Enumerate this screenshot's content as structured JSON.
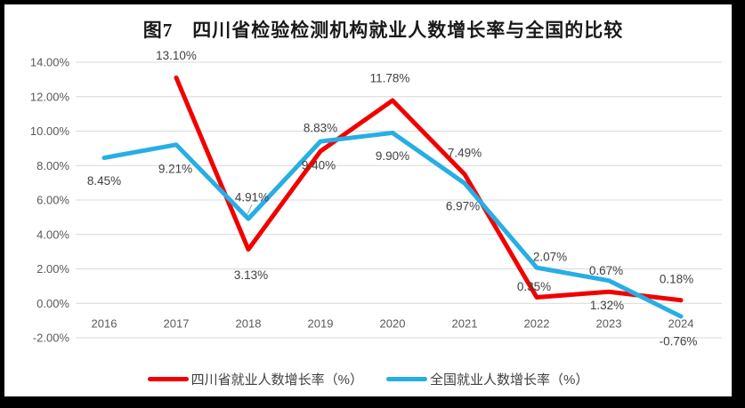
{
  "chart_data": {
    "type": "line",
    "title": "图7　四川省检验检测机构就业人数增长率与全国的比较",
    "categories": [
      "2016",
      "2017",
      "2018",
      "2019",
      "2020",
      "2021",
      "2022",
      "2023",
      "2024"
    ],
    "yticks": [
      "14.00%",
      "12.00%",
      "10.00%",
      "8.00%",
      "6.00%",
      "4.00%",
      "2.00%",
      "0.00%",
      "-2.00%"
    ],
    "ylim": [
      -2,
      14
    ],
    "ytick_step": 2,
    "grid": true,
    "legend_position": "bottom",
    "series": [
      {
        "name": "四川省就业人数增长率（%）",
        "color": "#F20000",
        "values": [
          null,
          13.1,
          3.13,
          8.83,
          11.78,
          7.49,
          0.35,
          0.67,
          0.18
        ],
        "labels": [
          "",
          "13.10%",
          "3.13%",
          "8.83%",
          "11.78%",
          "7.49%",
          "0.35%",
          "0.67%",
          "0.18%"
        ],
        "label_offsets": [
          [
            0,
            0
          ],
          [
            0,
            -25
          ],
          [
            3,
            29
          ],
          [
            0,
            -26
          ],
          [
            -3,
            -25
          ],
          [
            0,
            -24
          ],
          [
            -3,
            -12
          ],
          [
            -3,
            -24
          ],
          [
            -5,
            -24
          ]
        ]
      },
      {
        "name": "全国就业人数增长率（%）",
        "color": "#27AEE4",
        "values": [
          8.45,
          9.21,
          4.91,
          9.4,
          9.9,
          6.97,
          2.07,
          1.32,
          -0.76
        ],
        "labels": [
          "8.45%",
          "9.21%",
          "4.91%",
          "9.40%",
          "9.90%",
          "6.97%",
          "2.07%",
          "1.32%",
          "-0.76%"
        ],
        "label_offsets": [
          [
            0,
            26
          ],
          [
            -1,
            27
          ],
          [
            4,
            -24
          ],
          [
            -2,
            27
          ],
          [
            0,
            26
          ],
          [
            -2,
            26
          ],
          [
            15,
            -12
          ],
          [
            -2,
            28
          ],
          [
            -3,
            28
          ]
        ]
      }
    ],
    "leader_lines": [
      {
        "series": 1,
        "index": 2,
        "x1_offset": 4,
        "y1_offset": -16,
        "x2_offset": -1,
        "y2_offset": -5
      }
    ]
  },
  "colors": {
    "frame": "#000000",
    "background": "#FFFFFF",
    "gridline": "#D9D9D9",
    "axis_label": "#595959",
    "data_label": "#404040",
    "title": "#1A1A1A",
    "legend_text": "#404040",
    "leader_line": "#A6A6A6",
    "series_sichuan_red": "#F20000",
    "series_national_blue": "#27AEE4"
  }
}
